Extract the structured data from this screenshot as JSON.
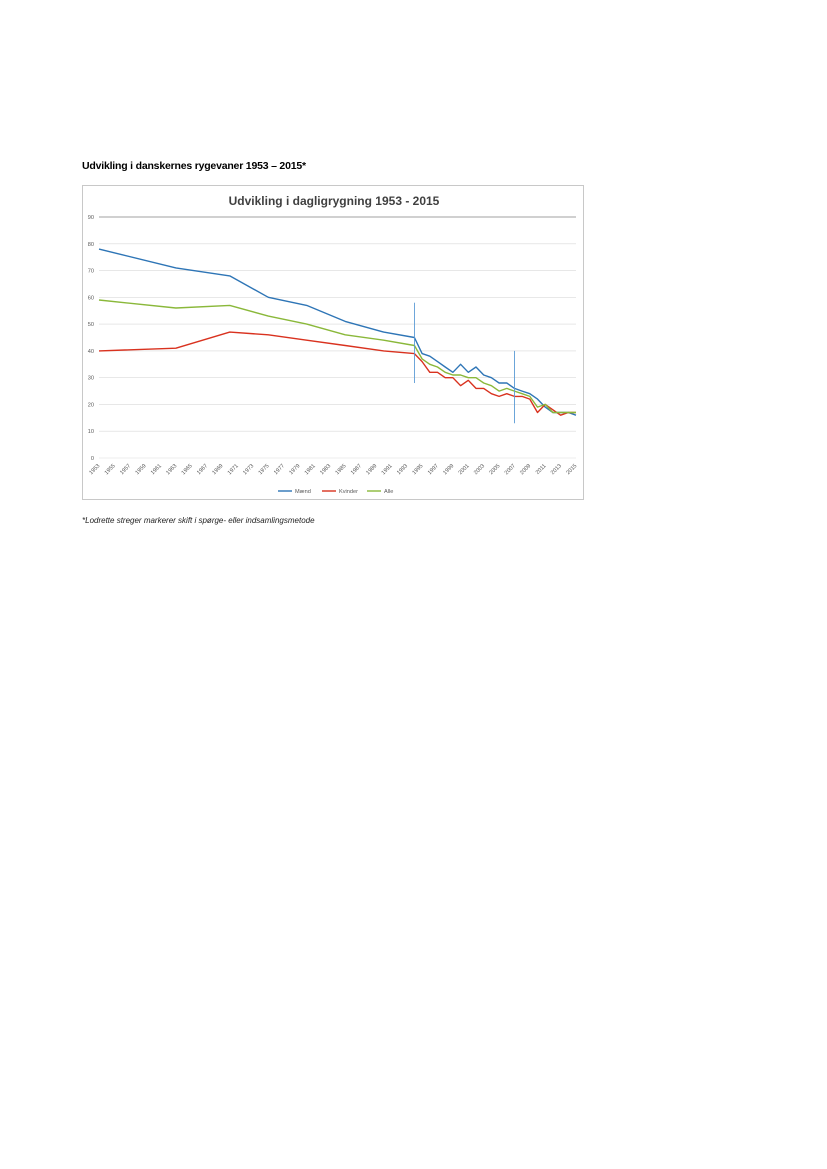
{
  "page": {
    "heading": "Udvikling i danskernes rygevaner 1953 – 2015*",
    "footnote": "*Lodrette streger markerer skift i spørge- eller indsamlingsmetode"
  },
  "chart_data": {
    "type": "line",
    "title": "Udvikling i dagligrygning 1953 - 2015",
    "xlabel": "",
    "ylabel": "",
    "ylim": [
      0,
      90
    ],
    "yticks": [
      0,
      10,
      20,
      30,
      40,
      50,
      60,
      70,
      80,
      90
    ],
    "xticks": [
      "1953",
      "1955",
      "1957",
      "1959",
      "1961",
      "1963",
      "1965",
      "1967",
      "1969",
      "1971",
      "1973",
      "1975",
      "1977",
      "1979",
      "1981",
      "1983",
      "1985",
      "1987",
      "1989",
      "1991",
      "1993",
      "1995",
      "1997",
      "1999",
      "2001",
      "2003",
      "2005",
      "2007",
      "2009",
      "2011",
      "2013",
      "2015"
    ],
    "xlim": [
      1953,
      2015
    ],
    "grid": true,
    "legend_position": "bottom",
    "method_change_markers": [
      1994,
      2007
    ],
    "series": [
      {
        "name": "Mænd",
        "color": "#2e75b6",
        "points": [
          [
            1953,
            78
          ],
          [
            1963,
            71
          ],
          [
            1970,
            68
          ],
          [
            1975,
            60
          ],
          [
            1980,
            57
          ],
          [
            1985,
            51
          ],
          [
            1990,
            47
          ],
          [
            1994,
            45
          ],
          [
            1995,
            39
          ],
          [
            1996,
            38
          ],
          [
            1997,
            36
          ],
          [
            1998,
            34
          ],
          [
            1999,
            32
          ],
          [
            2000,
            35
          ],
          [
            2001,
            32
          ],
          [
            2002,
            34
          ],
          [
            2003,
            31
          ],
          [
            2004,
            30
          ],
          [
            2005,
            28
          ],
          [
            2006,
            28
          ],
          [
            2007,
            26
          ],
          [
            2008,
            25
          ],
          [
            2009,
            24
          ],
          [
            2010,
            22
          ],
          [
            2011,
            19
          ],
          [
            2012,
            17
          ],
          [
            2013,
            17
          ],
          [
            2014,
            17
          ],
          [
            2015,
            16
          ]
        ]
      },
      {
        "name": "Kvinder",
        "color": "#d9321f",
        "points": [
          [
            1953,
            40
          ],
          [
            1963,
            41
          ],
          [
            1970,
            47
          ],
          [
            1975,
            46
          ],
          [
            1980,
            44
          ],
          [
            1985,
            42
          ],
          [
            1990,
            40
          ],
          [
            1994,
            39
          ],
          [
            1995,
            36
          ],
          [
            1996,
            32
          ],
          [
            1997,
            32
          ],
          [
            1998,
            30
          ],
          [
            1999,
            30
          ],
          [
            2000,
            27
          ],
          [
            2001,
            29
          ],
          [
            2002,
            26
          ],
          [
            2003,
            26
          ],
          [
            2004,
            24
          ],
          [
            2005,
            23
          ],
          [
            2006,
            24
          ],
          [
            2007,
            23
          ],
          [
            2008,
            23
          ],
          [
            2009,
            22
          ],
          [
            2010,
            17
          ],
          [
            2011,
            20
          ],
          [
            2012,
            18
          ],
          [
            2013,
            16
          ],
          [
            2014,
            17
          ],
          [
            2015,
            17
          ]
        ]
      },
      {
        "name": "Alle",
        "color": "#8ab83a",
        "points": [
          [
            1953,
            59
          ],
          [
            1963,
            56
          ],
          [
            1970,
            57
          ],
          [
            1975,
            53
          ],
          [
            1980,
            50
          ],
          [
            1985,
            46
          ],
          [
            1990,
            44
          ],
          [
            1994,
            42
          ],
          [
            1995,
            37
          ],
          [
            1996,
            35
          ],
          [
            1997,
            34
          ],
          [
            1998,
            32
          ],
          [
            1999,
            31
          ],
          [
            2000,
            31
          ],
          [
            2001,
            30
          ],
          [
            2002,
            30
          ],
          [
            2003,
            28
          ],
          [
            2004,
            27
          ],
          [
            2005,
            25
          ],
          [
            2006,
            26
          ],
          [
            2007,
            25
          ],
          [
            2008,
            24
          ],
          [
            2009,
            23
          ],
          [
            2010,
            19
          ],
          [
            2011,
            20
          ],
          [
            2012,
            17
          ],
          [
            2013,
            17
          ],
          [
            2014,
            17
          ],
          [
            2015,
            17
          ]
        ]
      }
    ]
  }
}
